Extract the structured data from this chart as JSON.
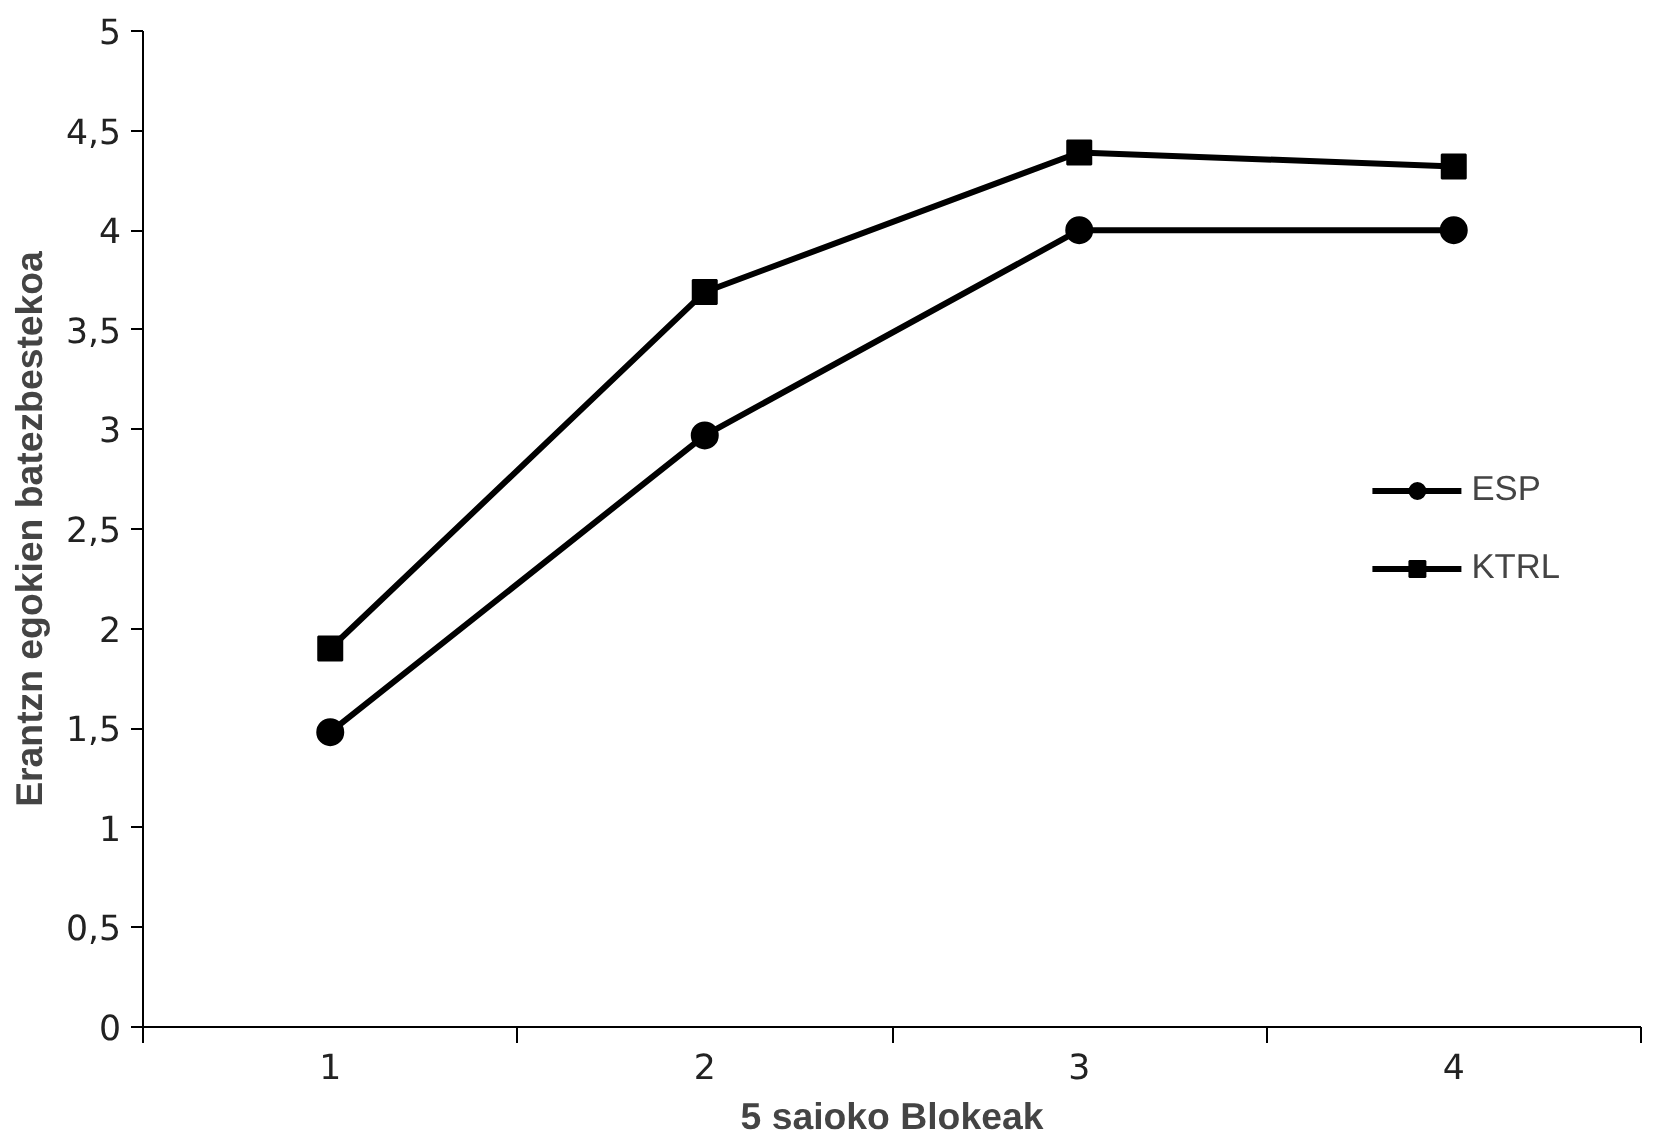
{
  "chart_data": {
    "type": "line",
    "xlabel": "5 saioko Blokeak",
    "ylabel": "Erantzn egokien batezbestekoa",
    "categories": [
      "1",
      "2",
      "3",
      "4"
    ],
    "series": [
      {
        "name": "ESP",
        "color": "#000000",
        "marker": "circle",
        "values": [
          1.48,
          2.97,
          4.0,
          4.0
        ]
      },
      {
        "name": "KTRL",
        "color": "#000000",
        "marker": "square",
        "values": [
          1.9,
          3.69,
          4.39,
          4.32
        ]
      }
    ],
    "ylim": [
      0,
      5
    ],
    "yticks": [
      0,
      {
        "value": 0.5,
        "label": "0,5"
      },
      1,
      {
        "value": 1.5,
        "label": "1,5"
      },
      2,
      {
        "value": 2.5,
        "label": "2,5"
      },
      3,
      {
        "value": 3.5,
        "label": "3,5"
      },
      4,
      {
        "value": 4.5,
        "label": "4,5"
      },
      5
    ],
    "grid": false,
    "legend": "right",
    "line_style": "solid"
  }
}
